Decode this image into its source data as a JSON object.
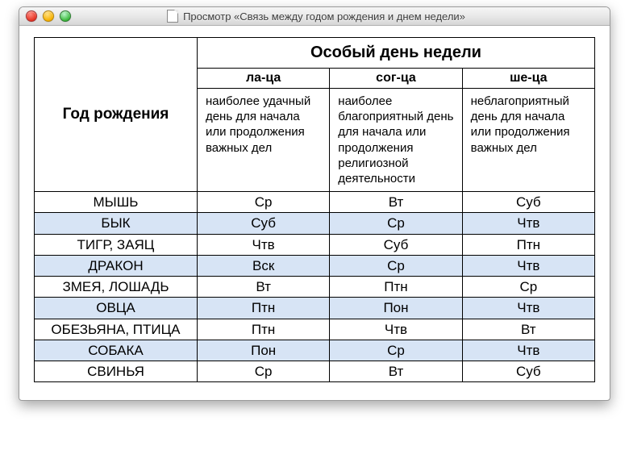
{
  "window": {
    "title": "Просмотр «Связь между годом рождения и днем недели»"
  },
  "table": {
    "header_special_day": "Особый день недели",
    "header_year": "Год рождения",
    "subheaders": {
      "la_tsa": "ла-ца",
      "sog_tsa": "сог-ца",
      "she_tsa": "ше-ца"
    },
    "descriptions": {
      "la_tsa": "наиболее удачный день для начала или продолжения важных дел",
      "sog_tsa": "наиболее благоприятный день для начала или продолжения религиозной деятельности",
      "she_tsa": "неблагоприятный день для начала или продолжения важных дел"
    },
    "rows": [
      {
        "animal": "МЫШЬ",
        "la": "Ср",
        "sog": "Вт",
        "she": "Суб"
      },
      {
        "animal": "БЫК",
        "la": "Суб",
        "sog": "Ср",
        "she": "Чтв"
      },
      {
        "animal": "ТИГР, ЗАЯЦ",
        "la": "Чтв",
        "sog": "Суб",
        "she": "Птн"
      },
      {
        "animal": "ДРАКОН",
        "la": "Вск",
        "sog": "Ср",
        "she": "Чтв"
      },
      {
        "animal": "ЗМЕЯ, ЛОШАДЬ",
        "la": "Вт",
        "sog": "Птн",
        "she": "Ср"
      },
      {
        "animal": "ОВЦА",
        "la": "Птн",
        "sog": "Пон",
        "she": "Чтв"
      },
      {
        "animal": "ОБЕЗЬЯНА, ПТИЦА",
        "la": "Птн",
        "sog": "Чтв",
        "she": "Вт"
      },
      {
        "animal": "СОБАКА",
        "la": "Пон",
        "sog": "Ср",
        "she": "Чтв"
      },
      {
        "animal": "СВИНЬЯ",
        "la": "Ср",
        "sog": "Вт",
        "she": "Суб"
      }
    ],
    "alt_row_bg": "#d7e4f5",
    "border_color": "#000000"
  }
}
